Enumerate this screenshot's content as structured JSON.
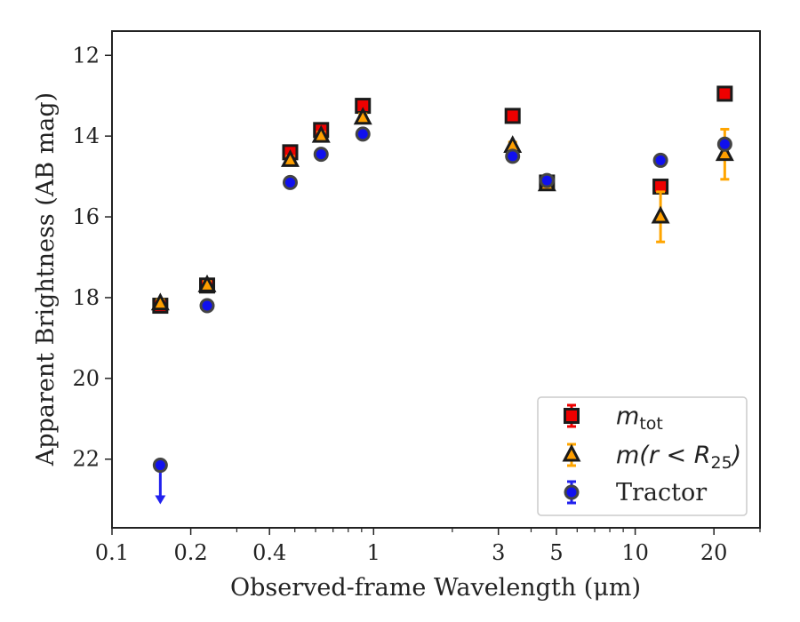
{
  "chart_data": {
    "type": "scatter",
    "title": "",
    "xlabel": "Observed-frame Wavelength (μm)",
    "ylabel": "Apparent Brightness (AB mag)",
    "xscale": "log",
    "ylim_inverted": true,
    "xlim": [
      0.1,
      30
    ],
    "ylim": [
      23.7,
      11.4
    ],
    "x_ticks": [
      {
        "value": 0.1,
        "label": "0.1"
      },
      {
        "value": 0.2,
        "label": "0.2"
      },
      {
        "value": 0.4,
        "label": "0.4"
      },
      {
        "value": 1,
        "label": "1"
      },
      {
        "value": 3,
        "label": "3"
      },
      {
        "value": 5,
        "label": "5"
      },
      {
        "value": 10,
        "label": "10"
      },
      {
        "value": 20,
        "label": "20"
      }
    ],
    "y_ticks": [
      {
        "value": 12,
        "label": "12"
      },
      {
        "value": 14,
        "label": "14"
      },
      {
        "value": 16,
        "label": "16"
      },
      {
        "value": 18,
        "label": "18"
      },
      {
        "value": 20,
        "label": "20"
      },
      {
        "value": 22,
        "label": "22"
      }
    ],
    "grid": false,
    "legend_position": "lower-right",
    "series": [
      {
        "name": "m_tot",
        "legend_main": "m",
        "legend_sub": "tot",
        "marker": "square",
        "color": "#ee0000",
        "errcolor": "#ee0000",
        "points": [
          {
            "x": 0.153,
            "y": 18.2,
            "err": 0.05
          },
          {
            "x": 0.231,
            "y": 17.7,
            "err": 0.05
          },
          {
            "x": 0.48,
            "y": 14.4,
            "err": 0.05
          },
          {
            "x": 0.63,
            "y": 13.85,
            "err": 0.05
          },
          {
            "x": 0.91,
            "y": 13.25,
            "err": 0.05
          },
          {
            "x": 3.4,
            "y": 13.5,
            "err": 0.05
          },
          {
            "x": 4.6,
            "y": 15.15,
            "err": 0.05
          },
          {
            "x": 12.5,
            "y": 15.25,
            "err": 0.05
          },
          {
            "x": 22.0,
            "y": 12.95,
            "err": 0.05
          }
        ]
      },
      {
        "name": "m(r < R_25)",
        "legend_main": "m(r < R",
        "legend_sub": "25",
        "legend_tail": ")",
        "marker": "triangle",
        "color": "#ff9f00",
        "errcolor": "#ffa500",
        "points": [
          {
            "x": 0.153,
            "y": 18.15,
            "err": 0.1
          },
          {
            "x": 0.231,
            "y": 17.7,
            "err": 0.1
          },
          {
            "x": 0.48,
            "y": 14.6,
            "err": 0.1
          },
          {
            "x": 0.63,
            "y": 14.0,
            "err": 0.1
          },
          {
            "x": 0.91,
            "y": 13.55,
            "err": 0.1
          },
          {
            "x": 3.4,
            "y": 14.25,
            "err": 0.1
          },
          {
            "x": 4.6,
            "y": 15.2,
            "err": 0.1
          },
          {
            "x": 12.5,
            "y": 16.0,
            "err": 0.62
          },
          {
            "x": 22.0,
            "y": 14.45,
            "err": 0.62
          }
        ]
      },
      {
        "name": "Tractor",
        "legend_main": "Tractor",
        "marker": "circle",
        "color": "#1010ee",
        "errcolor": "#2020ee",
        "points": [
          {
            "x": 0.153,
            "y": 22.15,
            "err": 0,
            "upper_limit": true
          },
          {
            "x": 0.231,
            "y": 18.2,
            "err": 0.05
          },
          {
            "x": 0.48,
            "y": 15.15,
            "err": 0.05
          },
          {
            "x": 0.63,
            "y": 14.45,
            "err": 0.05
          },
          {
            "x": 0.91,
            "y": 13.95,
            "err": 0.05
          },
          {
            "x": 3.4,
            "y": 14.5,
            "err": 0.05
          },
          {
            "x": 4.6,
            "y": 15.1,
            "err": 0.05
          },
          {
            "x": 12.5,
            "y": 14.6,
            "err": 0.05
          },
          {
            "x": 22.0,
            "y": 14.2,
            "err": 0.05
          }
        ]
      }
    ]
  }
}
